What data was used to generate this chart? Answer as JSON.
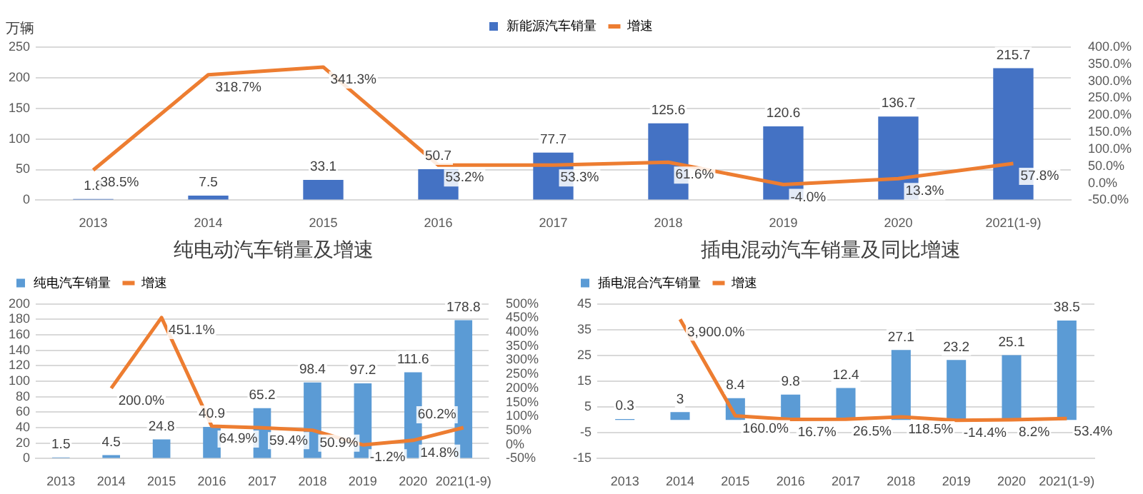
{
  "chart_data": [
    {
      "type": "bar",
      "ylabel": "万辆",
      "categories": [
        "2013",
        "2014",
        "2015",
        "2016",
        "2017",
        "2018",
        "2019",
        "2020",
        "2021(1-9)"
      ],
      "series": [
        {
          "name": "新能源汽车销量",
          "color": "#4472c4",
          "values": [
            1.8,
            7.5,
            33.1,
            50.7,
            77.7,
            125.6,
            120.6,
            136.7,
            215.7
          ],
          "value_labels": [
            "1.8",
            "7.5",
            "33.1",
            "50.7",
            "77.7",
            "125.6",
            "120.6",
            "136.7",
            "215.7"
          ]
        },
        {
          "name": "增速",
          "type": "line",
          "axis": "y2",
          "color": "#ed7d31",
          "values": [
            38.5,
            318.7,
            341.3,
            53.2,
            53.3,
            61.6,
            -4.0,
            13.3,
            57.8
          ],
          "value_labels": [
            "38.5%",
            "318.7%",
            "341.3%",
            "53.2%",
            "53.3%",
            "61.6%",
            "-4.0%",
            "13.3%",
            "57.8%"
          ]
        }
      ],
      "ylim": [
        0,
        250
      ],
      "yticks": [
        0,
        50,
        100,
        150,
        200,
        250
      ],
      "y2lim": [
        -50,
        400
      ],
      "y2ticks": [
        {
          "value": -50,
          "label": "-50.0%"
        },
        {
          "value": 0,
          "label": "0.0%"
        },
        {
          "value": 50,
          "label": "50.0%"
        },
        {
          "value": 100,
          "label": "100.0%"
        },
        {
          "value": 150,
          "label": "150.0%"
        },
        {
          "value": 200,
          "label": "200.0%"
        },
        {
          "value": 250,
          "label": "250.0%"
        },
        {
          "value": 300,
          "label": "300.0%"
        },
        {
          "value": 350,
          "label": "350.0%"
        },
        {
          "value": 400,
          "label": "400.0%"
        }
      ],
      "grid": "y",
      "legend": "top"
    },
    {
      "type": "bar",
      "title": "纯电动汽车销量及增速",
      "categories": [
        "2013",
        "2014",
        "2015",
        "2016",
        "2017",
        "2018",
        "2019",
        "2020",
        "2021(1-9)"
      ],
      "series": [
        {
          "name": "纯电汽车销量",
          "color": "#5b9bd5",
          "values": [
            1.5,
            4.5,
            24.8,
            40.9,
            65.2,
            98.4,
            97.2,
            111.6,
            178.8
          ],
          "value_labels": [
            "1.5",
            "4.5",
            "24.8",
            "40.9",
            "65.2",
            "98.4",
            "97.2",
            "111.6",
            "178.8"
          ]
        },
        {
          "name": "增速",
          "type": "line",
          "axis": "y2",
          "color": "#ed7d31",
          "values": [
            null,
            200.0,
            451.1,
            64.9,
            59.4,
            50.9,
            -1.2,
            14.8,
            60.2
          ],
          "value_labels": [
            null,
            "200.0%",
            "451.1%",
            "64.9%",
            "59.4%",
            "50.9%",
            "-1.2%",
            "14.8%",
            "60.2%"
          ]
        }
      ],
      "ylim": [
        0,
        200
      ],
      "yticks": [
        0,
        20,
        40,
        60,
        80,
        100,
        120,
        140,
        160,
        180,
        200
      ],
      "y2lim": [
        -50,
        500
      ],
      "y2ticks": [
        {
          "value": -50,
          "label": "-50%"
        },
        {
          "value": 0,
          "label": "0%"
        },
        {
          "value": 50,
          "label": "50%"
        },
        {
          "value": 100,
          "label": "100%"
        },
        {
          "value": 150,
          "label": "150%"
        },
        {
          "value": 200,
          "label": "200%"
        },
        {
          "value": 250,
          "label": "250%"
        },
        {
          "value": 300,
          "label": "300%"
        },
        {
          "value": 350,
          "label": "350%"
        },
        {
          "value": 400,
          "label": "400%"
        },
        {
          "value": 450,
          "label": "450%"
        },
        {
          "value": 500,
          "label": "500%"
        }
      ],
      "grid": "y",
      "legend": "top"
    },
    {
      "type": "bar",
      "title": "插电混动汽车销量及同比增速",
      "categories": [
        "2013",
        "2014",
        "2015",
        "2016",
        "2017",
        "2018",
        "2019",
        "2020",
        "2021(1-9)"
      ],
      "series": [
        {
          "name": "插电混合汽车销量",
          "color": "#5b9bd5",
          "values": [
            0.3,
            3,
            8.4,
            9.8,
            12.4,
            27.1,
            23.2,
            25.1,
            38.5
          ],
          "value_labels": [
            "0.3",
            "3",
            "8.4",
            "9.8",
            "12.4",
            "27.1",
            "23.2",
            "25.1",
            "38.5"
          ]
        },
        {
          "name": "增速",
          "type": "line",
          "axis": "y2",
          "color": "#ed7d31",
          "values": [
            null,
            3900.0,
            160.0,
            16.7,
            26.5,
            118.5,
            -14.4,
            8.2,
            53.4
          ],
          "value_labels": [
            null,
            "3,900.0%",
            "160.0%",
            "16.7%",
            "26.5%",
            "118.5%",
            "-14.4%",
            "8.2%",
            "53.4%"
          ]
        }
      ],
      "ylim": [
        -15,
        45
      ],
      "yticks": [
        -15,
        -5,
        5,
        15,
        25,
        35,
        45
      ],
      "y2lim": [
        -1500,
        4500
      ],
      "grid": "y",
      "legend": "top"
    }
  ]
}
